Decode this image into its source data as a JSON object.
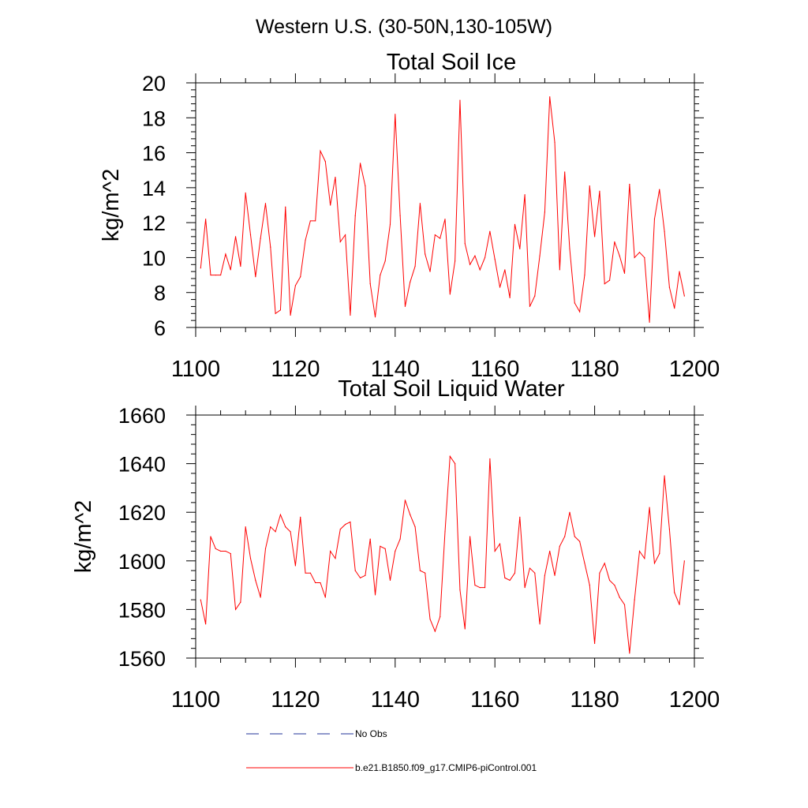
{
  "figure": {
    "suptitle": "Western U.S. (30-50N,130-105W)",
    "line_color": "#ff0000",
    "obs_color": "#223399"
  },
  "legend": {
    "obs_label": "No Obs",
    "model_label": "b.e21.B1850.f09_g17.CMIP6-piControl.001"
  },
  "chart_data": [
    {
      "type": "line",
      "title": "Total Soil Ice",
      "ylabel": "kg/m^2",
      "xlabel": "",
      "xlim": [
        1100,
        1200
      ],
      "ylim": [
        6,
        20
      ],
      "xticks": [
        1100,
        1120,
        1140,
        1160,
        1180,
        1200
      ],
      "yticks": [
        6,
        8,
        10,
        12,
        14,
        16,
        18,
        20
      ],
      "series": [
        {
          "name": "b.e21.B1850.f09_g17.CMIP6-piControl.001",
          "x": [
            1101,
            1102,
            1103,
            1104,
            1105,
            1106,
            1107,
            1108,
            1109,
            1110,
            1111,
            1112,
            1113,
            1114,
            1115,
            1116,
            1117,
            1118,
            1119,
            1120,
            1121,
            1122,
            1123,
            1124,
            1125,
            1126,
            1127,
            1128,
            1129,
            1130,
            1131,
            1132,
            1133,
            1134,
            1135,
            1136,
            1137,
            1138,
            1139,
            1140,
            1141,
            1142,
            1143,
            1144,
            1145,
            1146,
            1147,
            1148,
            1149,
            1150,
            1151,
            1152,
            1153,
            1154,
            1155,
            1156,
            1157,
            1158,
            1159,
            1160,
            1161,
            1162,
            1163,
            1164,
            1165,
            1166,
            1167,
            1168,
            1169,
            1170,
            1171,
            1172,
            1173,
            1174,
            1175,
            1176,
            1177,
            1178,
            1179,
            1180,
            1181,
            1182,
            1183,
            1184,
            1185,
            1186,
            1187,
            1188,
            1189,
            1190,
            1191,
            1192,
            1193,
            1194,
            1195,
            1196,
            1197,
            1198
          ],
          "values": [
            9.4,
            12.2,
            9.0,
            9.0,
            9.0,
            10.2,
            9.3,
            11.2,
            9.5,
            13.7,
            11.3,
            8.9,
            11.1,
            13.1,
            10.6,
            6.8,
            7.0,
            12.9,
            6.7,
            8.4,
            8.9,
            11.0,
            12.1,
            12.1,
            16.1,
            15.5,
            13.0,
            14.6,
            10.9,
            11.3,
            6.7,
            12.4,
            15.4,
            14.1,
            8.5,
            6.6,
            9.0,
            9.8,
            11.9,
            18.2,
            12.4,
            7.2,
            8.6,
            9.5,
            13.1,
            10.2,
            9.2,
            11.3,
            11.1,
            12.2,
            7.9,
            9.8,
            19.0,
            10.8,
            9.6,
            10.1,
            9.3,
            10.0,
            11.5,
            9.9,
            8.3,
            9.3,
            7.7,
            11.9,
            10.5,
            13.6,
            7.2,
            7.8,
            10.1,
            12.6,
            19.2,
            16.6,
            9.3,
            14.9,
            10.5,
            7.4,
            6.9,
            9.0,
            14.1,
            11.2,
            13.8,
            8.5,
            8.7,
            10.9,
            10.1,
            9.1,
            14.2,
            10.0,
            10.3,
            10.0,
            6.3,
            12.2,
            13.9,
            11.5,
            8.3,
            7.1,
            9.2,
            7.8
          ]
        }
      ]
    },
    {
      "type": "line",
      "title": "Total Soil Liquid Water",
      "ylabel": "kg/m^2",
      "xlabel": "",
      "xlim": [
        1100,
        1200
      ],
      "ylim": [
        1560,
        1660
      ],
      "xticks": [
        1100,
        1120,
        1140,
        1160,
        1180,
        1200
      ],
      "yticks": [
        1560,
        1580,
        1600,
        1620,
        1640,
        1660
      ],
      "series": [
        {
          "name": "b.e21.B1850.f09_g17.CMIP6-piControl.001",
          "x": [
            1101,
            1102,
            1103,
            1104,
            1105,
            1106,
            1107,
            1108,
            1109,
            1110,
            1111,
            1112,
            1113,
            1114,
            1115,
            1116,
            1117,
            1118,
            1119,
            1120,
            1121,
            1122,
            1123,
            1124,
            1125,
            1126,
            1127,
            1128,
            1129,
            1130,
            1131,
            1132,
            1133,
            1134,
            1135,
            1136,
            1137,
            1138,
            1139,
            1140,
            1141,
            1142,
            1143,
            1144,
            1145,
            1146,
            1147,
            1148,
            1149,
            1150,
            1151,
            1152,
            1153,
            1154,
            1155,
            1156,
            1157,
            1158,
            1159,
            1160,
            1161,
            1162,
            1163,
            1164,
            1165,
            1166,
            1167,
            1168,
            1169,
            1170,
            1171,
            1172,
            1173,
            1174,
            1175,
            1176,
            1177,
            1178,
            1179,
            1180,
            1181,
            1182,
            1183,
            1184,
            1185,
            1186,
            1187,
            1188,
            1189,
            1190,
            1191,
            1192,
            1193,
            1194,
            1195,
            1196,
            1197,
            1198
          ],
          "values": [
            1584,
            1574,
            1610,
            1605,
            1604,
            1604,
            1603,
            1580,
            1583,
            1614,
            1601,
            1592,
            1585,
            1605,
            1614,
            1612,
            1619,
            1614,
            1612,
            1598,
            1618,
            1595,
            1595,
            1591,
            1591,
            1585,
            1604,
            1601,
            1613,
            1615,
            1616,
            1596,
            1593,
            1594,
            1609,
            1586,
            1606,
            1605,
            1592,
            1604,
            1609,
            1625,
            1619,
            1614,
            1596,
            1595,
            1576,
            1571,
            1577,
            1612,
            1643,
            1640,
            1588,
            1572,
            1610,
            1590,
            1589,
            1589,
            1642,
            1604,
            1607,
            1593,
            1592,
            1595,
            1618,
            1589,
            1597,
            1595,
            1574,
            1594,
            1604,
            1594,
            1606,
            1610,
            1620,
            1610,
            1608,
            1599,
            1590,
            1566,
            1595,
            1599,
            1592,
            1590,
            1585,
            1582,
            1562,
            1584,
            1604,
            1601,
            1622,
            1599,
            1603,
            1635,
            1613,
            1587,
            1582,
            1600
          ]
        }
      ]
    }
  ]
}
